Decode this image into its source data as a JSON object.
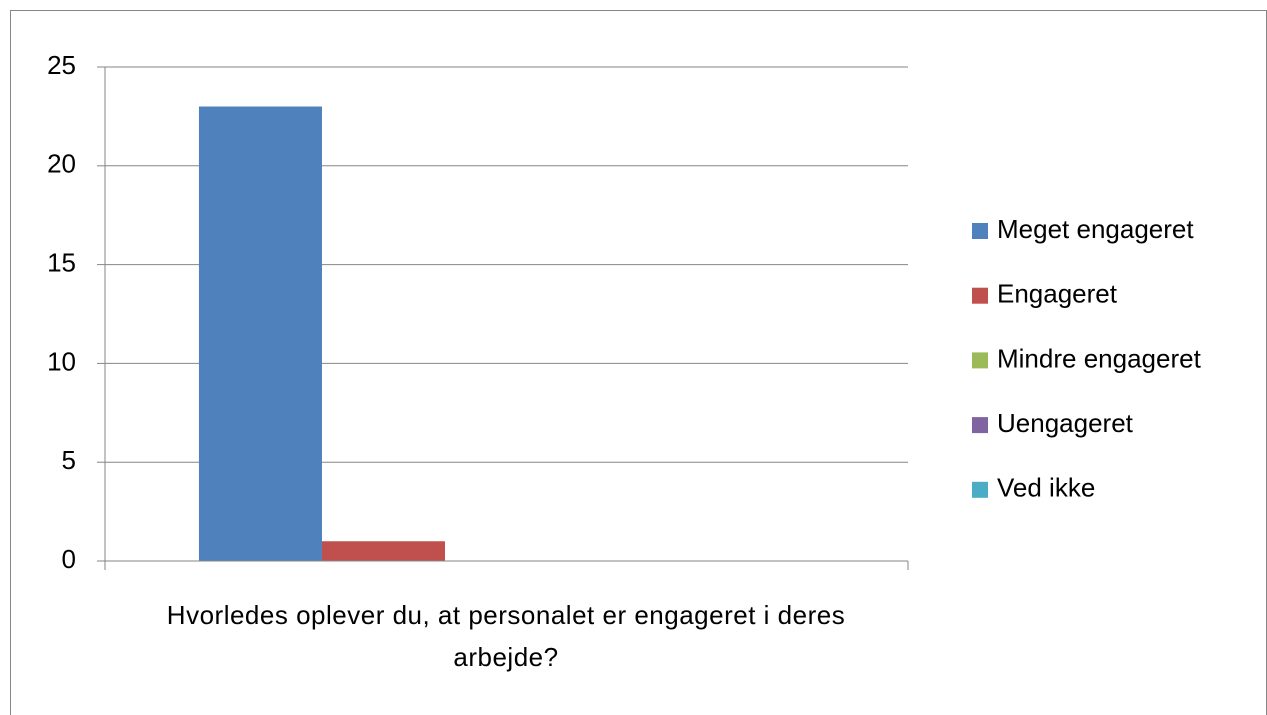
{
  "chart_data": {
    "type": "bar",
    "categories": [
      "Hvorledes oplever du, at personalet er engageret i deres arbejde?"
    ],
    "series": [
      {
        "name": "Meget engageret",
        "color": "#4f81bd",
        "values": [
          23
        ]
      },
      {
        "name": "Engageret",
        "color": "#c0504d",
        "values": [
          1
        ]
      },
      {
        "name": "Mindre engageret",
        "color": "#9bbb59",
        "values": [
          0
        ]
      },
      {
        "name": "Uengageret",
        "color": "#8064a2",
        "values": [
          0
        ]
      },
      {
        "name": "Ved ikke",
        "color": "#4bacc6",
        "values": [
          0
        ]
      }
    ],
    "ylim": [
      0,
      25
    ],
    "yticks": [
      0,
      5,
      10,
      15,
      20,
      25
    ],
    "grid": true,
    "legend": "right"
  }
}
